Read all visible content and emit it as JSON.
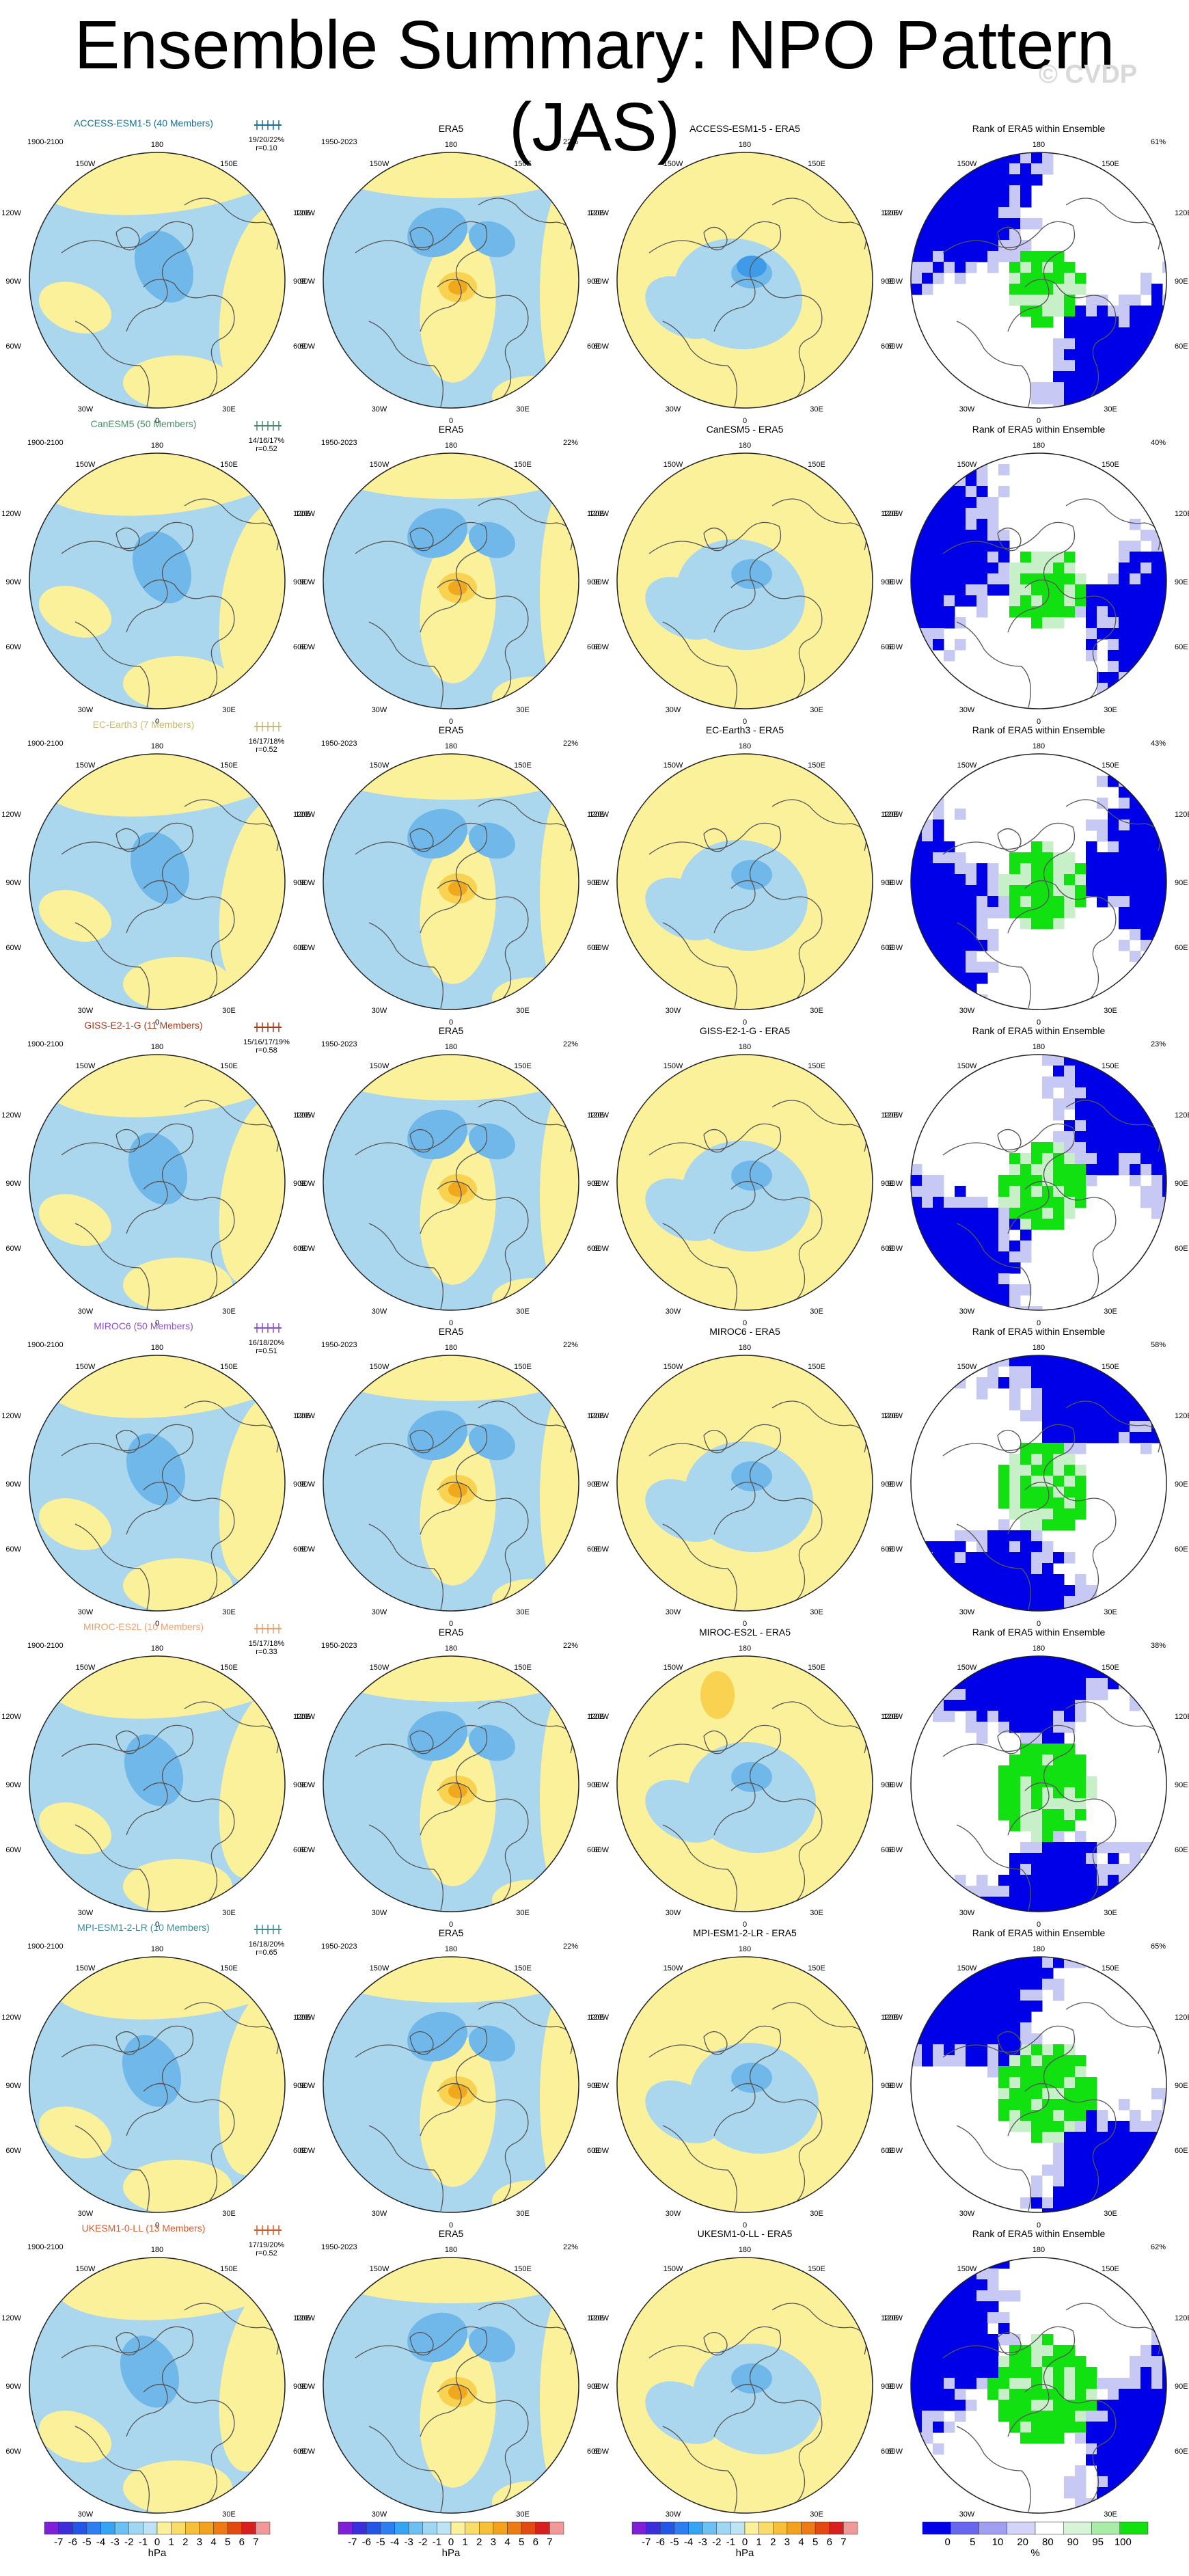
{
  "title": "Ensemble Summary: NPO Pattern (JAS)",
  "watermark": "© CVDP",
  "colors": {
    "ocean_blue": "#aad7ee",
    "land_yellow": "#fbf19b",
    "neg_med": "#70b8ea",
    "neg_dark": "#3f9be8",
    "pos_light": "#f8d250",
    "pos_med": "#f2a81c",
    "rank_blue": "#0000e8",
    "rank_lavender": "#c8c8f4",
    "rank_green": "#11e011",
    "rank_lightgreen": "#c8f0c8"
  },
  "panel_common": {
    "era5_title": "ERA5",
    "era5_years": "1950-2023",
    "era5_pct": "22%",
    "model_years": "1900-2100",
    "rank_title": "Rank of ERA5 within Ensemble",
    "lon_labels": [
      "180",
      "150W",
      "150E",
      "120W",
      "120E",
      "90W",
      "90E",
      "60W",
      "60E",
      "30W",
      "30E",
      "0"
    ]
  },
  "rows": [
    {
      "model": "ACCESS-ESM1-5 (40 Members)",
      "color": "#1a6f93",
      "stats": "19/20/22%",
      "r": "r=0.10",
      "diff": "ACCESS-ESM1-5 - ERA5",
      "rank_pct": "61%"
    },
    {
      "model": "CanESM5 (50 Members)",
      "color": "#4a8c6a",
      "stats": "14/16/17%",
      "r": "r=0.52",
      "diff": "CanESM5 - ERA5",
      "rank_pct": "40%"
    },
    {
      "model": "EC-Earth3 (7 Members)",
      "color": "#c9b870",
      "stats": "16/17/18%",
      "r": "r=0.52",
      "diff": "EC-Earth3 - ERA5",
      "rank_pct": "43%"
    },
    {
      "model": "GISS-E2-1-G (11 Members)",
      "color": "#a53a1a",
      "stats": "15/16/17/19%",
      "r": "r=0.58",
      "diff": "GISS-E2-1-G - ERA5",
      "rank_pct": "23%"
    },
    {
      "model": "MIROC6 (50 Members)",
      "color": "#8e4fd1",
      "stats": "16/18/20%",
      "r": "r=0.51",
      "diff": "MIROC6 - ERA5",
      "rank_pct": "58%"
    },
    {
      "model": "MIROC-ES2L (10 Members)",
      "color": "#e8a070",
      "stats": "15/17/18%",
      "r": "r=0.33",
      "diff": "MIROC-ES2L - ERA5",
      "rank_pct": "38%"
    },
    {
      "model": "MPI-ESM1-2-LR (10 Members)",
      "color": "#3c8c9a",
      "stats": "16/18/20%",
      "r": "r=0.65",
      "diff": "MPI-ESM1-2-LR - ERA5",
      "rank_pct": "65%"
    },
    {
      "model": "UKESM1-0-LL (13 Members)",
      "color": "#d85a2a",
      "stats": "17/19/20%",
      "r": "r=0.52",
      "diff": "UKESM1-0-LL - ERA5",
      "rank_pct": "62%"
    }
  ],
  "chart_data": {
    "type": "heatmap",
    "title": "Ensemble Summary: NPO Pattern (JAS)",
    "projection": "north polar stereographic",
    "colorbar_hpa": {
      "ticks": [
        "-7",
        "-6",
        "-5",
        "-4",
        "-3",
        "-2",
        "-1",
        "0",
        "1",
        "2",
        "3",
        "4",
        "5",
        "6",
        "7"
      ],
      "unit": "hPa",
      "colors": [
        "#7f1fd6",
        "#3a2fd8",
        "#2456e6",
        "#2e7ef0",
        "#35a5f3",
        "#6cc1f2",
        "#9fd6f3",
        "#bde3f5",
        "#fbf19b",
        "#f9dc6a",
        "#f6c03a",
        "#f2a21c",
        "#ee7a14",
        "#e24a12",
        "#d71f1f",
        "#f19999"
      ]
    },
    "colorbar_rank": {
      "ticks": [
        "0",
        "5",
        "10",
        "20",
        "80",
        "90",
        "95",
        "100"
      ],
      "unit": "%",
      "colors": [
        "#0000e8",
        "#6666ee",
        "#a0a0f2",
        "#d4d4f8",
        "#ffffff",
        "#d8f4d8",
        "#a8eca8",
        "#11e011"
      ]
    }
  }
}
